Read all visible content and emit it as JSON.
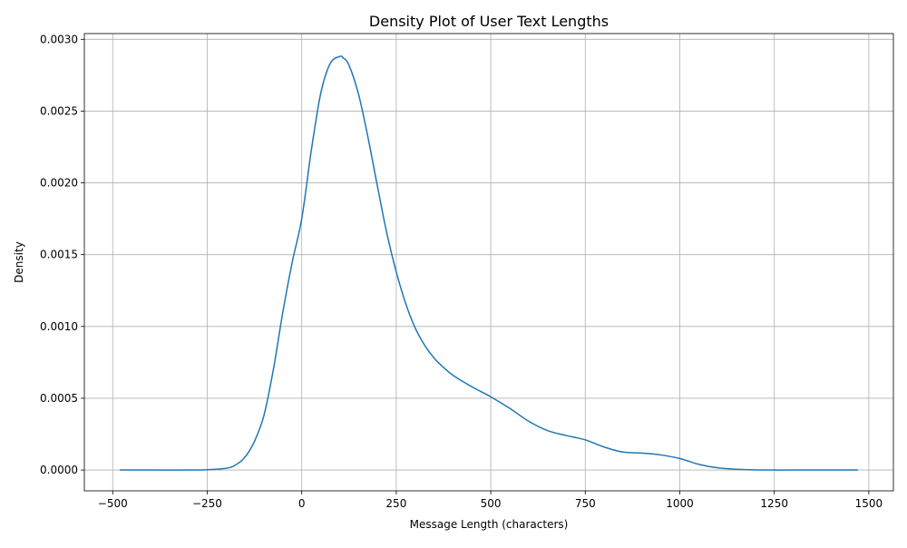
{
  "chart_data": {
    "type": "line",
    "title": "Density Plot of User Text Lengths",
    "xlabel": "Message Length (characters)",
    "ylabel": "Density",
    "xlim": [
      -575,
      1565
    ],
    "ylim": [
      -0.000145,
      0.00304
    ],
    "x_ticks": [
      -500,
      -250,
      0,
      250,
      500,
      750,
      1000,
      1250,
      1500
    ],
    "x_tick_labels": [
      "−500",
      "−250",
      "0",
      "250",
      "500",
      "750",
      "1000",
      "1250",
      "1500"
    ],
    "y_ticks": [
      0,
      0.0005,
      0.001,
      0.0015,
      0.002,
      0.0025,
      0.003
    ],
    "y_tick_labels": [
      "0.0000",
      "0.0005",
      "0.0010",
      "0.0015",
      "0.0020",
      "0.0025",
      "0.0030"
    ],
    "grid": true,
    "line_color": "#1f77b4",
    "series": [
      {
        "x": [
          -480,
          -400,
          -300,
          -250,
          -200,
          -175,
          -150,
          -125,
          -100,
          -75,
          -50,
          -25,
          0,
          25,
          50,
          75,
          100,
          110,
          125,
          150,
          175,
          200,
          225,
          250,
          275,
          300,
          325,
          350,
          375,
          400,
          450,
          500,
          550,
          600,
          650,
          700,
          750,
          800,
          850,
          900,
          950,
          1000,
          1050,
          1100,
          1150,
          1200,
          1250,
          1300,
          1400,
          1470
        ],
        "y": [
          0,
          0,
          0,
          2e-06,
          1.2e-05,
          3.5e-05,
          9e-05,
          0.0002,
          0.00038,
          0.0007,
          0.0011,
          0.00145,
          0.00175,
          0.00222,
          0.00262,
          0.00283,
          0.00288,
          0.00287,
          0.00282,
          0.00262,
          0.00232,
          0.00198,
          0.00165,
          0.00138,
          0.00116,
          0.00099,
          0.00087,
          0.00078,
          0.000715,
          0.00066,
          0.00058,
          0.00051,
          0.00043,
          0.00034,
          0.000275,
          0.00024,
          0.00021,
          0.00016,
          0.000125,
          0.000118,
          0.000105,
          8e-05,
          4e-05,
          1.5e-05,
          5e-06,
          1e-06,
          0,
          0,
          0,
          0
        ]
      }
    ]
  }
}
